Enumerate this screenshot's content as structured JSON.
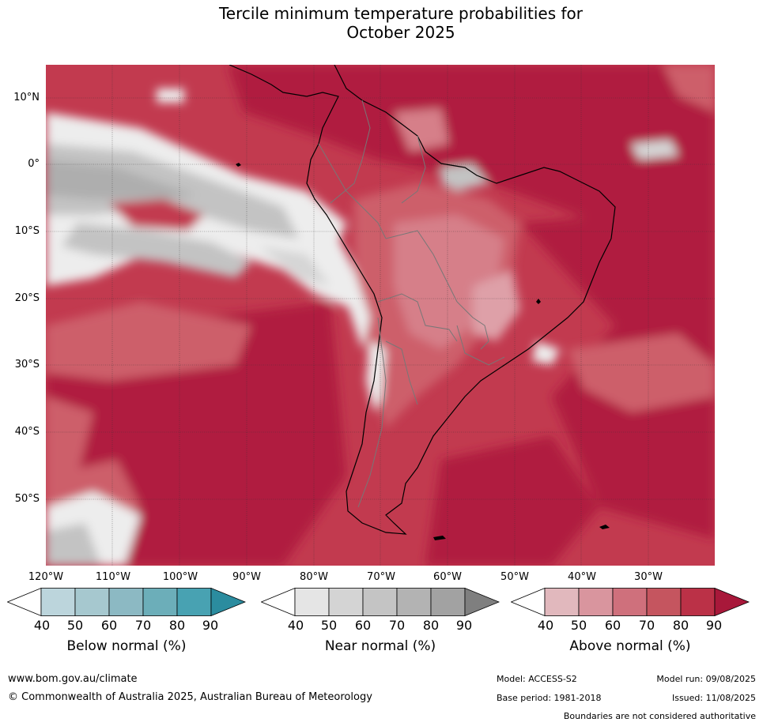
{
  "title_line1": "Tercile minimum temperature probabilities for",
  "title_line2": "October 2025",
  "lat_labels": [
    "10°N",
    "0°",
    "10°S",
    "20°S",
    "30°S",
    "40°S",
    "50°S"
  ],
  "lon_labels": [
    "120°W",
    "110°W",
    "100°W",
    "90°W",
    "80°W",
    "70°W",
    "60°W",
    "50°W",
    "40°W",
    "30°W"
  ],
  "colorbars": [
    {
      "label": "Below normal (%)",
      "ticks": [
        "40",
        "50",
        "60",
        "70",
        "80",
        "90"
      ],
      "colors": [
        "#ffffff",
        "#bcd5dc",
        "#a6c8cf",
        "#8cb9c3",
        "#6caeb9",
        "#48a2b2",
        "#2b8c9f"
      ]
    },
    {
      "label": "Near normal (%)",
      "ticks": [
        "40",
        "50",
        "60",
        "70",
        "80",
        "90"
      ],
      "colors": [
        "#ffffff",
        "#e5e5e5",
        "#d4d4d4",
        "#c4c4c4",
        "#b3b3b3",
        "#a2a2a2",
        "#7f7f7f"
      ]
    },
    {
      "label": "Above normal (%)",
      "ticks": [
        "40",
        "50",
        "60",
        "70",
        "80",
        "90"
      ],
      "colors": [
        "#ffffff",
        "#e1b8bd",
        "#d9959e",
        "#cf707c",
        "#c5555f",
        "#bb3147",
        "#a8183a"
      ]
    }
  ],
  "footer": {
    "website": "www.bom.gov.au/climate",
    "copyright": "© Commonwealth of Australia 2025, Australian Bureau of Meteorology",
    "model": "Model: ACCESS-S2",
    "model_run": "Model run: 09/08/2025",
    "base_period": "Base period: 1981-2018",
    "issued": "Issued: 11/08/2025",
    "disclaimer": "Boundaries are not considered authoritative"
  },
  "map_colors": {
    "above_90": "#b01d3f",
    "above_80": "#c23a4f",
    "above_70": "#cd5f6b",
    "above_60": "#d67f89",
    "above_50": "#dea0a8",
    "near_40": "#ededed",
    "near_50": "#d5d5d5",
    "near_60": "#c3c3c3",
    "near_70": "#aeaeae",
    "near_80": "#969696",
    "below_50": "#9cc3cc"
  }
}
